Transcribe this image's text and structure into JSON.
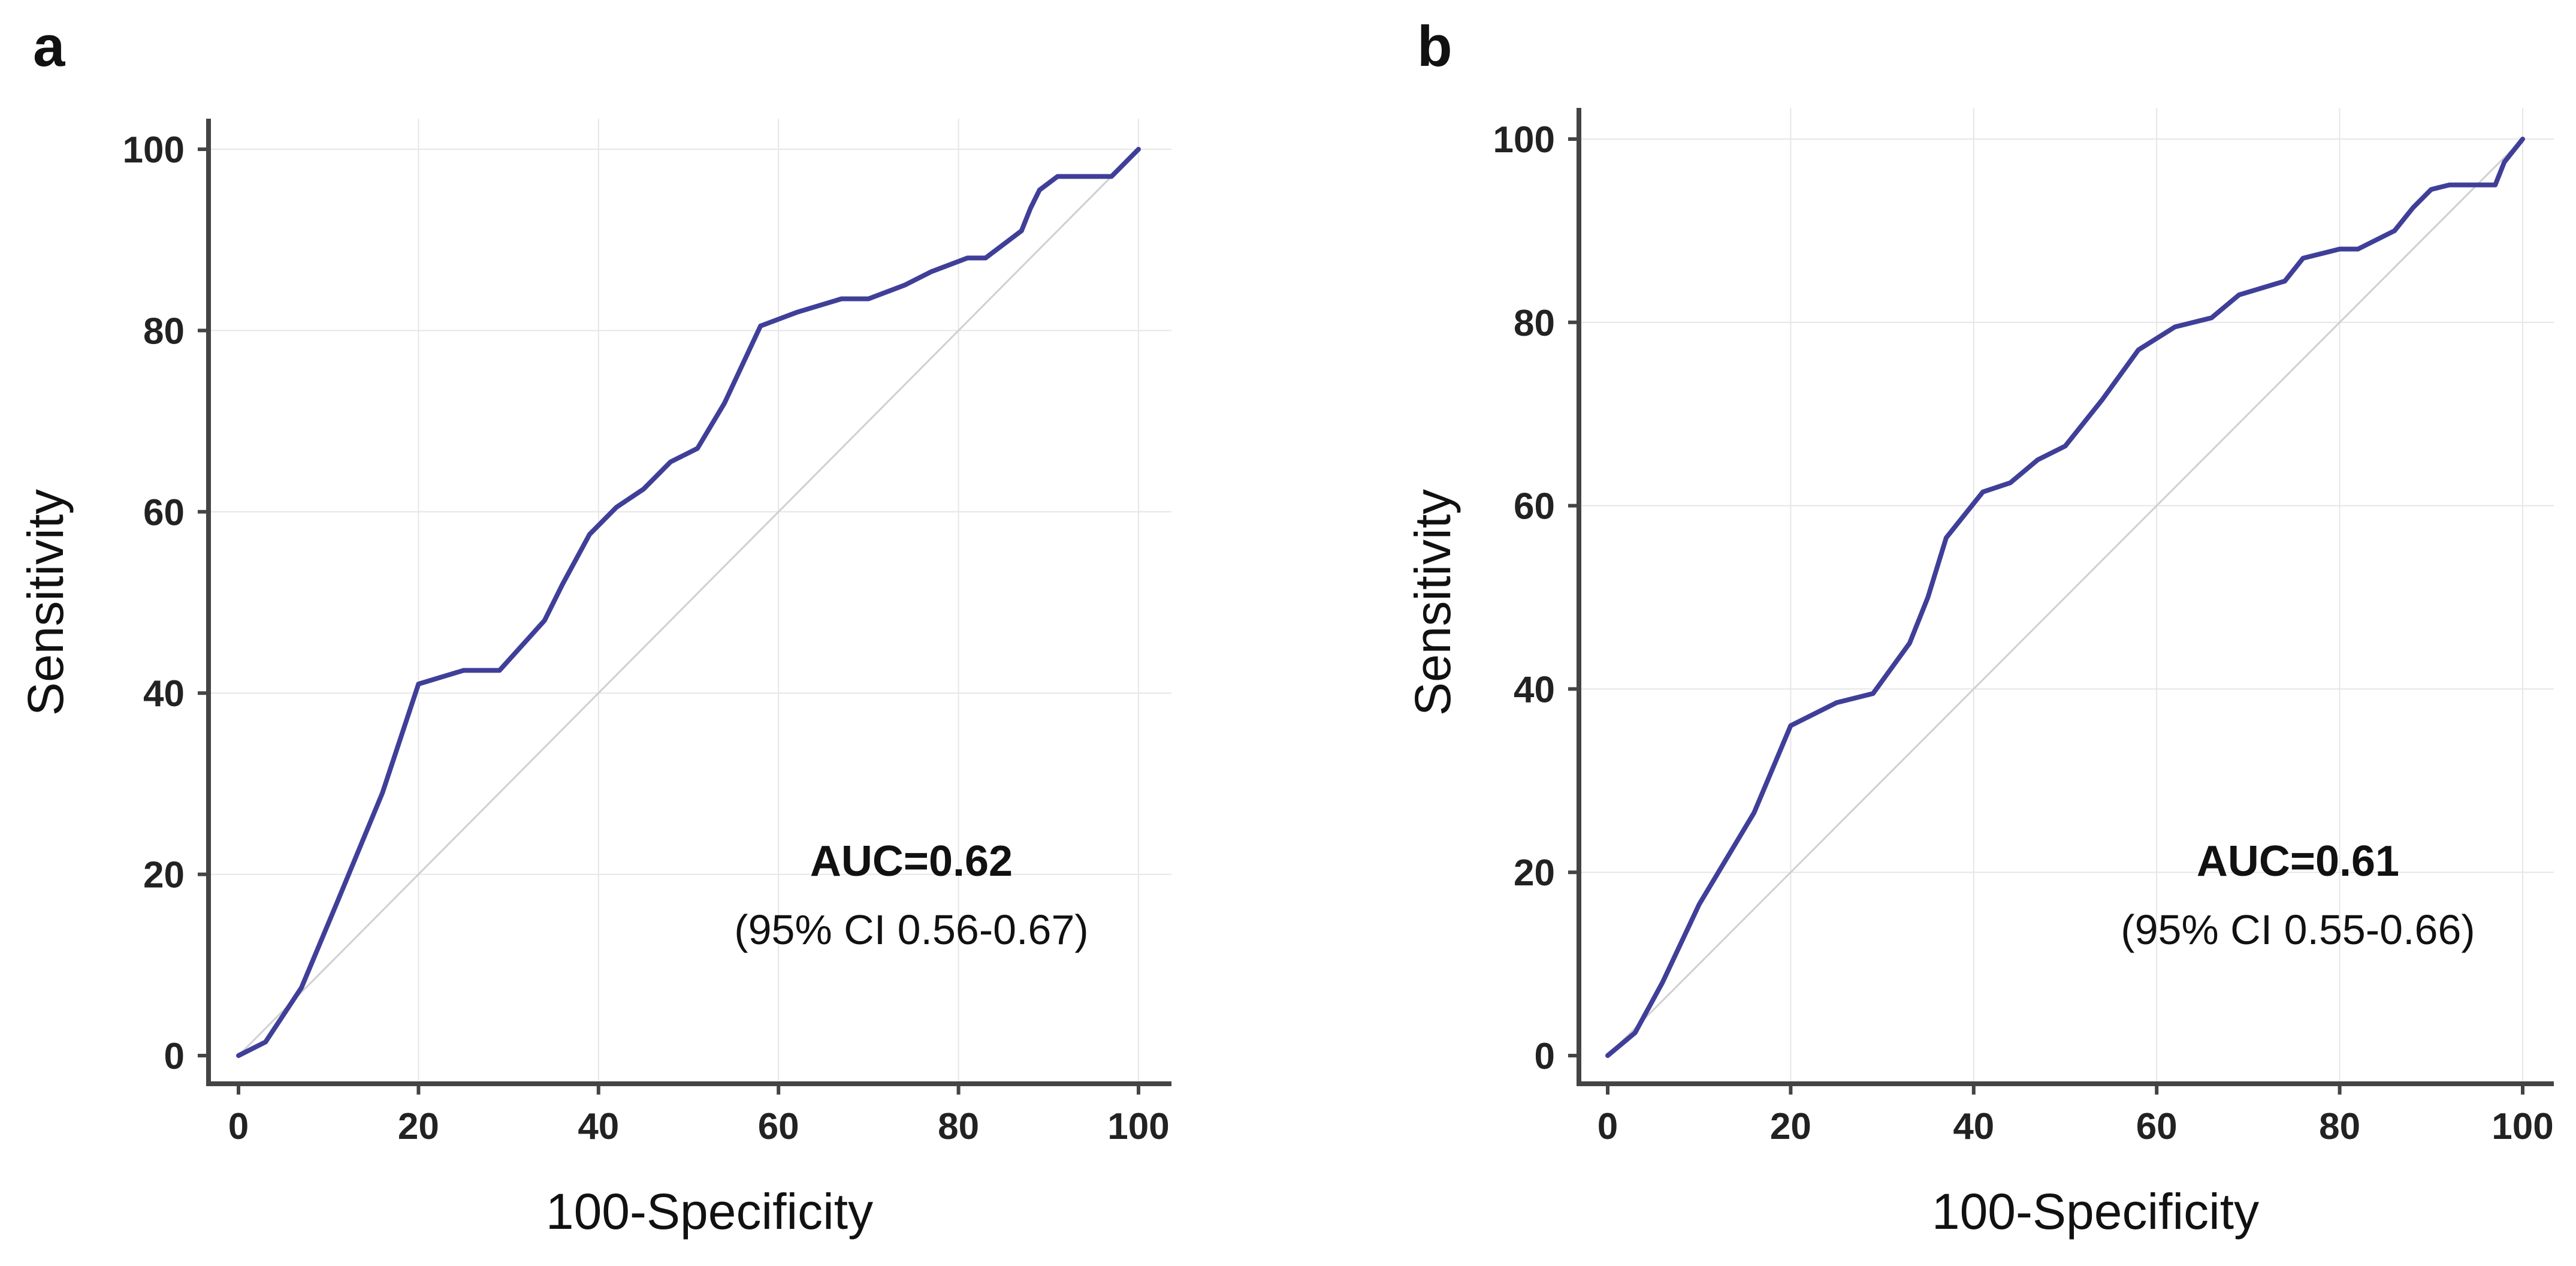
{
  "colors": {
    "roc": "#3f3f99",
    "diagonal": "#d0d0d0",
    "grid": "#e6e6e6",
    "axis": "#444444"
  },
  "chart_data": [
    {
      "type": "line",
      "panel": "a",
      "xlabel": "100-Specificity",
      "ylabel": "Sensitivity",
      "xlim": [
        0,
        100
      ],
      "ylim": [
        0,
        100
      ],
      "xticks": [
        0,
        20,
        40,
        60,
        80,
        100
      ],
      "yticks": [
        0,
        20,
        40,
        60,
        80,
        100
      ],
      "grid": true,
      "auc_label": "AUC=0.62",
      "ci_label": "(95% CI 0.56-0.67)",
      "reference": [
        [
          0,
          0
        ],
        [
          100,
          100
        ]
      ],
      "series": [
        {
          "name": "ROC",
          "points": [
            [
              0,
              0
            ],
            [
              3,
              1.5
            ],
            [
              7,
              7.5
            ],
            [
              11,
              17
            ],
            [
              16,
              29
            ],
            [
              20,
              41
            ],
            [
              25,
              42.5
            ],
            [
              29,
              42.5
            ],
            [
              34,
              48
            ],
            [
              36,
              52
            ],
            [
              39,
              57.5
            ],
            [
              42,
              60.5
            ],
            [
              45,
              62.5
            ],
            [
              48,
              65.5
            ],
            [
              51,
              67
            ],
            [
              54,
              72
            ],
            [
              58,
              80.5
            ],
            [
              62,
              82
            ],
            [
              67,
              83.5
            ],
            [
              70,
              83.5
            ],
            [
              74,
              85
            ],
            [
              77,
              86.5
            ],
            [
              81,
              88
            ],
            [
              83,
              88
            ],
            [
              87,
              91
            ],
            [
              88,
              93.5
            ],
            [
              89,
              95.5
            ],
            [
              91,
              97
            ],
            [
              97,
              97
            ],
            [
              100,
              100
            ]
          ]
        }
      ]
    },
    {
      "type": "line",
      "panel": "b",
      "xlabel": "100-Specificity",
      "ylabel": "Sensitivity",
      "xlim": [
        0,
        100
      ],
      "ylim": [
        0,
        100
      ],
      "xticks": [
        0,
        20,
        40,
        60,
        80,
        100
      ],
      "yticks": [
        0,
        20,
        40,
        60,
        80,
        100
      ],
      "grid": true,
      "auc_label": "AUC=0.61",
      "ci_label": "(95% CI 0.55-0.66)",
      "reference": [
        [
          0,
          0
        ],
        [
          100,
          100
        ]
      ],
      "series": [
        {
          "name": "ROC",
          "points": [
            [
              0,
              0
            ],
            [
              3,
              2.5
            ],
            [
              6,
              8
            ],
            [
              10,
              16.5
            ],
            [
              16,
              26.5
            ],
            [
              20,
              36
            ],
            [
              25,
              38.5
            ],
            [
              29,
              39.5
            ],
            [
              33,
              45
            ],
            [
              35,
              50
            ],
            [
              37,
              56.5
            ],
            [
              41,
              61.5
            ],
            [
              44,
              62.5
            ],
            [
              47,
              65
            ],
            [
              50,
              66.5
            ],
            [
              54,
              71.5
            ],
            [
              58,
              77
            ],
            [
              62,
              79.5
            ],
            [
              66,
              80.5
            ],
            [
              69,
              83
            ],
            [
              74,
              84.5
            ],
            [
              76,
              87
            ],
            [
              80,
              88
            ],
            [
              82,
              88
            ],
            [
              86,
              90
            ],
            [
              88,
              92.5
            ],
            [
              90,
              94.5
            ],
            [
              92,
              95
            ],
            [
              97,
              95
            ],
            [
              98,
              97.5
            ],
            [
              100,
              100
            ]
          ]
        }
      ]
    }
  ]
}
